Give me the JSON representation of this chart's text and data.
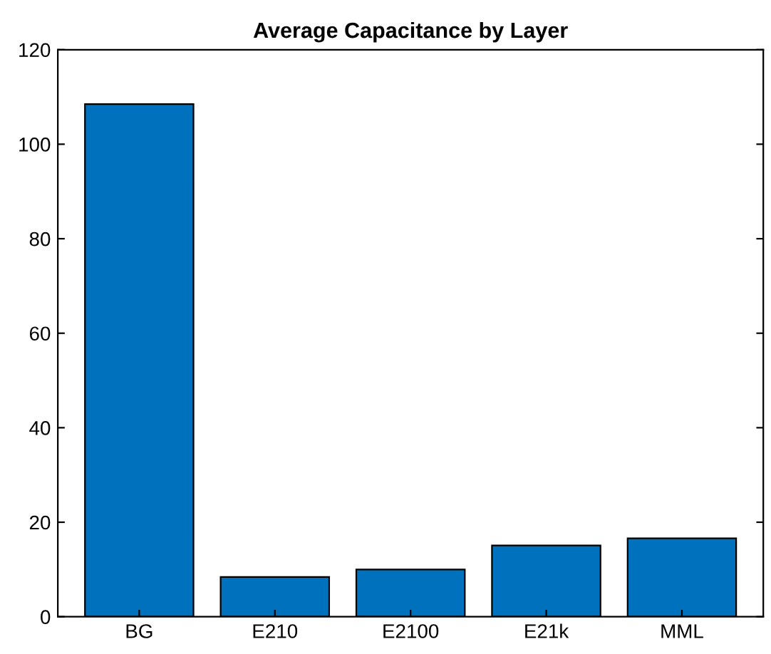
{
  "chart_data": {
    "type": "bar",
    "title": "Average Capacitance by Layer",
    "categories": [
      "BG",
      "E210",
      "E2100",
      "E21k",
      "MML"
    ],
    "values": [
      108.5,
      8.4,
      10,
      15.1,
      16.6
    ],
    "color": "#0072bd",
    "ylim": [
      0,
      120
    ],
    "yticks": [
      0,
      20,
      40,
      60,
      80,
      100,
      120
    ],
    "grid": false
  }
}
